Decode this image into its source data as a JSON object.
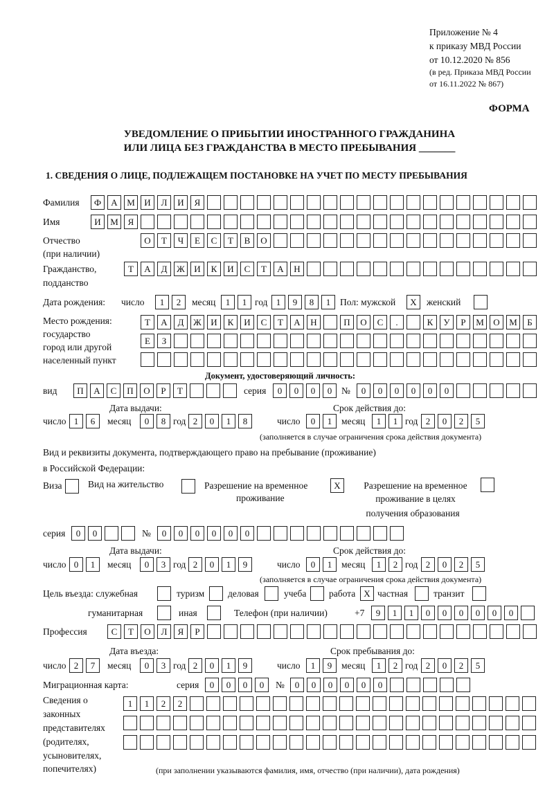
{
  "header": {
    "appendix": [
      "Приложение № 4",
      "к приказу МВД России",
      "от 10.12.2020 № 856"
    ],
    "amendment": [
      "(в ред. Приказа МВД России",
      "от 16.11.2022 № 867)"
    ],
    "form_label": "ФОРМА",
    "title_line1": "УВЕДОМЛЕНИЕ О ПРИБЫТИИ ИНОСТРАННОГО ГРАЖДАНИНА",
    "title_line2": "ИЛИ ЛИЦА БЕЗ ГРАЖДАНСТВА В МЕСТО ПРЕБЫВАНИЯ _______"
  },
  "section1": {
    "heading": "1. СВЕДЕНИЯ О ЛИЦЕ, ПОДЛЕЖАЩЕМ ПОСТАНОВКЕ НА УЧЕТ ПО МЕСТУ ПРЕБЫВАНИЯ",
    "labels": {
      "surname": "Фамилия",
      "name": "Имя",
      "patronymic": "Отчество",
      "patronymic_note": "(при наличии)",
      "citizenship": "Гражданство,",
      "citizenship2": "подданство",
      "birth_date": "Дата рождения:",
      "day": "число",
      "month": "месяц",
      "year": "год",
      "sex": "Пол: мужской",
      "female": "женский",
      "birth_place": "Место рождения:",
      "birth_place2": "государство",
      "birth_place3": "город или другой",
      "birth_place4": "населенный пункт",
      "id_doc": "Документ, удостоверяющий личность:",
      "kind": "вид",
      "series": "серия",
      "number": "№",
      "issue_date": "Дата выдачи:",
      "valid_until": "Срок действия до:",
      "validity_note": "(заполняется в случае ограничения срока действия документа)",
      "residence_doc": "Вид и реквизиты документа, подтверждающего право на пребывание (проживание)",
      "residence_doc2": "в Российской Федерации:",
      "visa": "Виза",
      "residence_permit": "Вид на жительство",
      "temp_permit": "Разрешение на временное",
      "temp_permit2": "проживание",
      "edu_permit": "Разрешение на временное",
      "edu_permit2": "проживание в целях",
      "edu_permit3": "получения образования",
      "purpose": "Цель въезда: служебная",
      "tourism": "туризм",
      "business": "деловая",
      "study": "учеба",
      "work": "работа",
      "private": "частная",
      "transit": "транзит",
      "humanitarian": "гуманитарная",
      "other": "иная",
      "phone": "Телефон (при наличии)",
      "phone_prefix": "+7",
      "profession": "Профессия",
      "entry_date": "Дата въезда:",
      "stay_until": "Срок пребывания до:",
      "migration_card": "Миграционная карта:",
      "reps": [
        "Сведения о",
        "законных",
        "представителях",
        "(родителях,",
        "усыновителях,",
        "попечителях)"
      ],
      "reps_note": "(при заполнении указываются фамилия, имя, отчество (при наличии), дата рождения)"
    },
    "values": {
      "surname": "ФАМИЛИЯ",
      "name": "ИМЯ",
      "patronymic": "ОТЧЕСТВО",
      "citizenship": "ТАДЖИКИСТАН",
      "birth_day": "12",
      "birth_month": "11",
      "birth_year": "1981",
      "sex_male": "X",
      "sex_female": "",
      "birth_place1": "ТАДЖИКИСТАН ПОС. КУРМОМБ",
      "birth_place2": "ЕЗ",
      "birth_place3": "",
      "doc_kind": "ПАСПОРТ",
      "doc_series": "0000",
      "doc_number": "000000",
      "doc_issue_day": "16",
      "doc_issue_month": "08",
      "doc_issue_year": "2018",
      "doc_valid_day": "01",
      "doc_valid_month": "11",
      "doc_valid_year": "2025",
      "visa": "",
      "residence_permit": "",
      "temp_permit": "X",
      "edu_permit": "",
      "res_series": "00",
      "res_number": "000000",
      "res_issue_day": "01",
      "res_issue_month": "03",
      "res_issue_year": "2019",
      "res_valid_day": "01",
      "res_valid_month": "12",
      "res_valid_year": "2025",
      "purpose_service": "",
      "purpose_tourism": "",
      "purpose_business": "",
      "purpose_study": "",
      "purpose_work": "X",
      "purpose_private": "",
      "purpose_transit": "",
      "purpose_humanitarian": "",
      "purpose_other": "",
      "phone": "911000000",
      "profession": "СТОЛЯР",
      "entry_day": "27",
      "entry_month": "03",
      "entry_year": "2019",
      "stay_day": "19",
      "stay_month": "12",
      "stay_year": "2025",
      "mc_series": "0000",
      "mc_number": "000000",
      "reps1": "1122",
      "reps2": "",
      "reps3": ""
    }
  }
}
